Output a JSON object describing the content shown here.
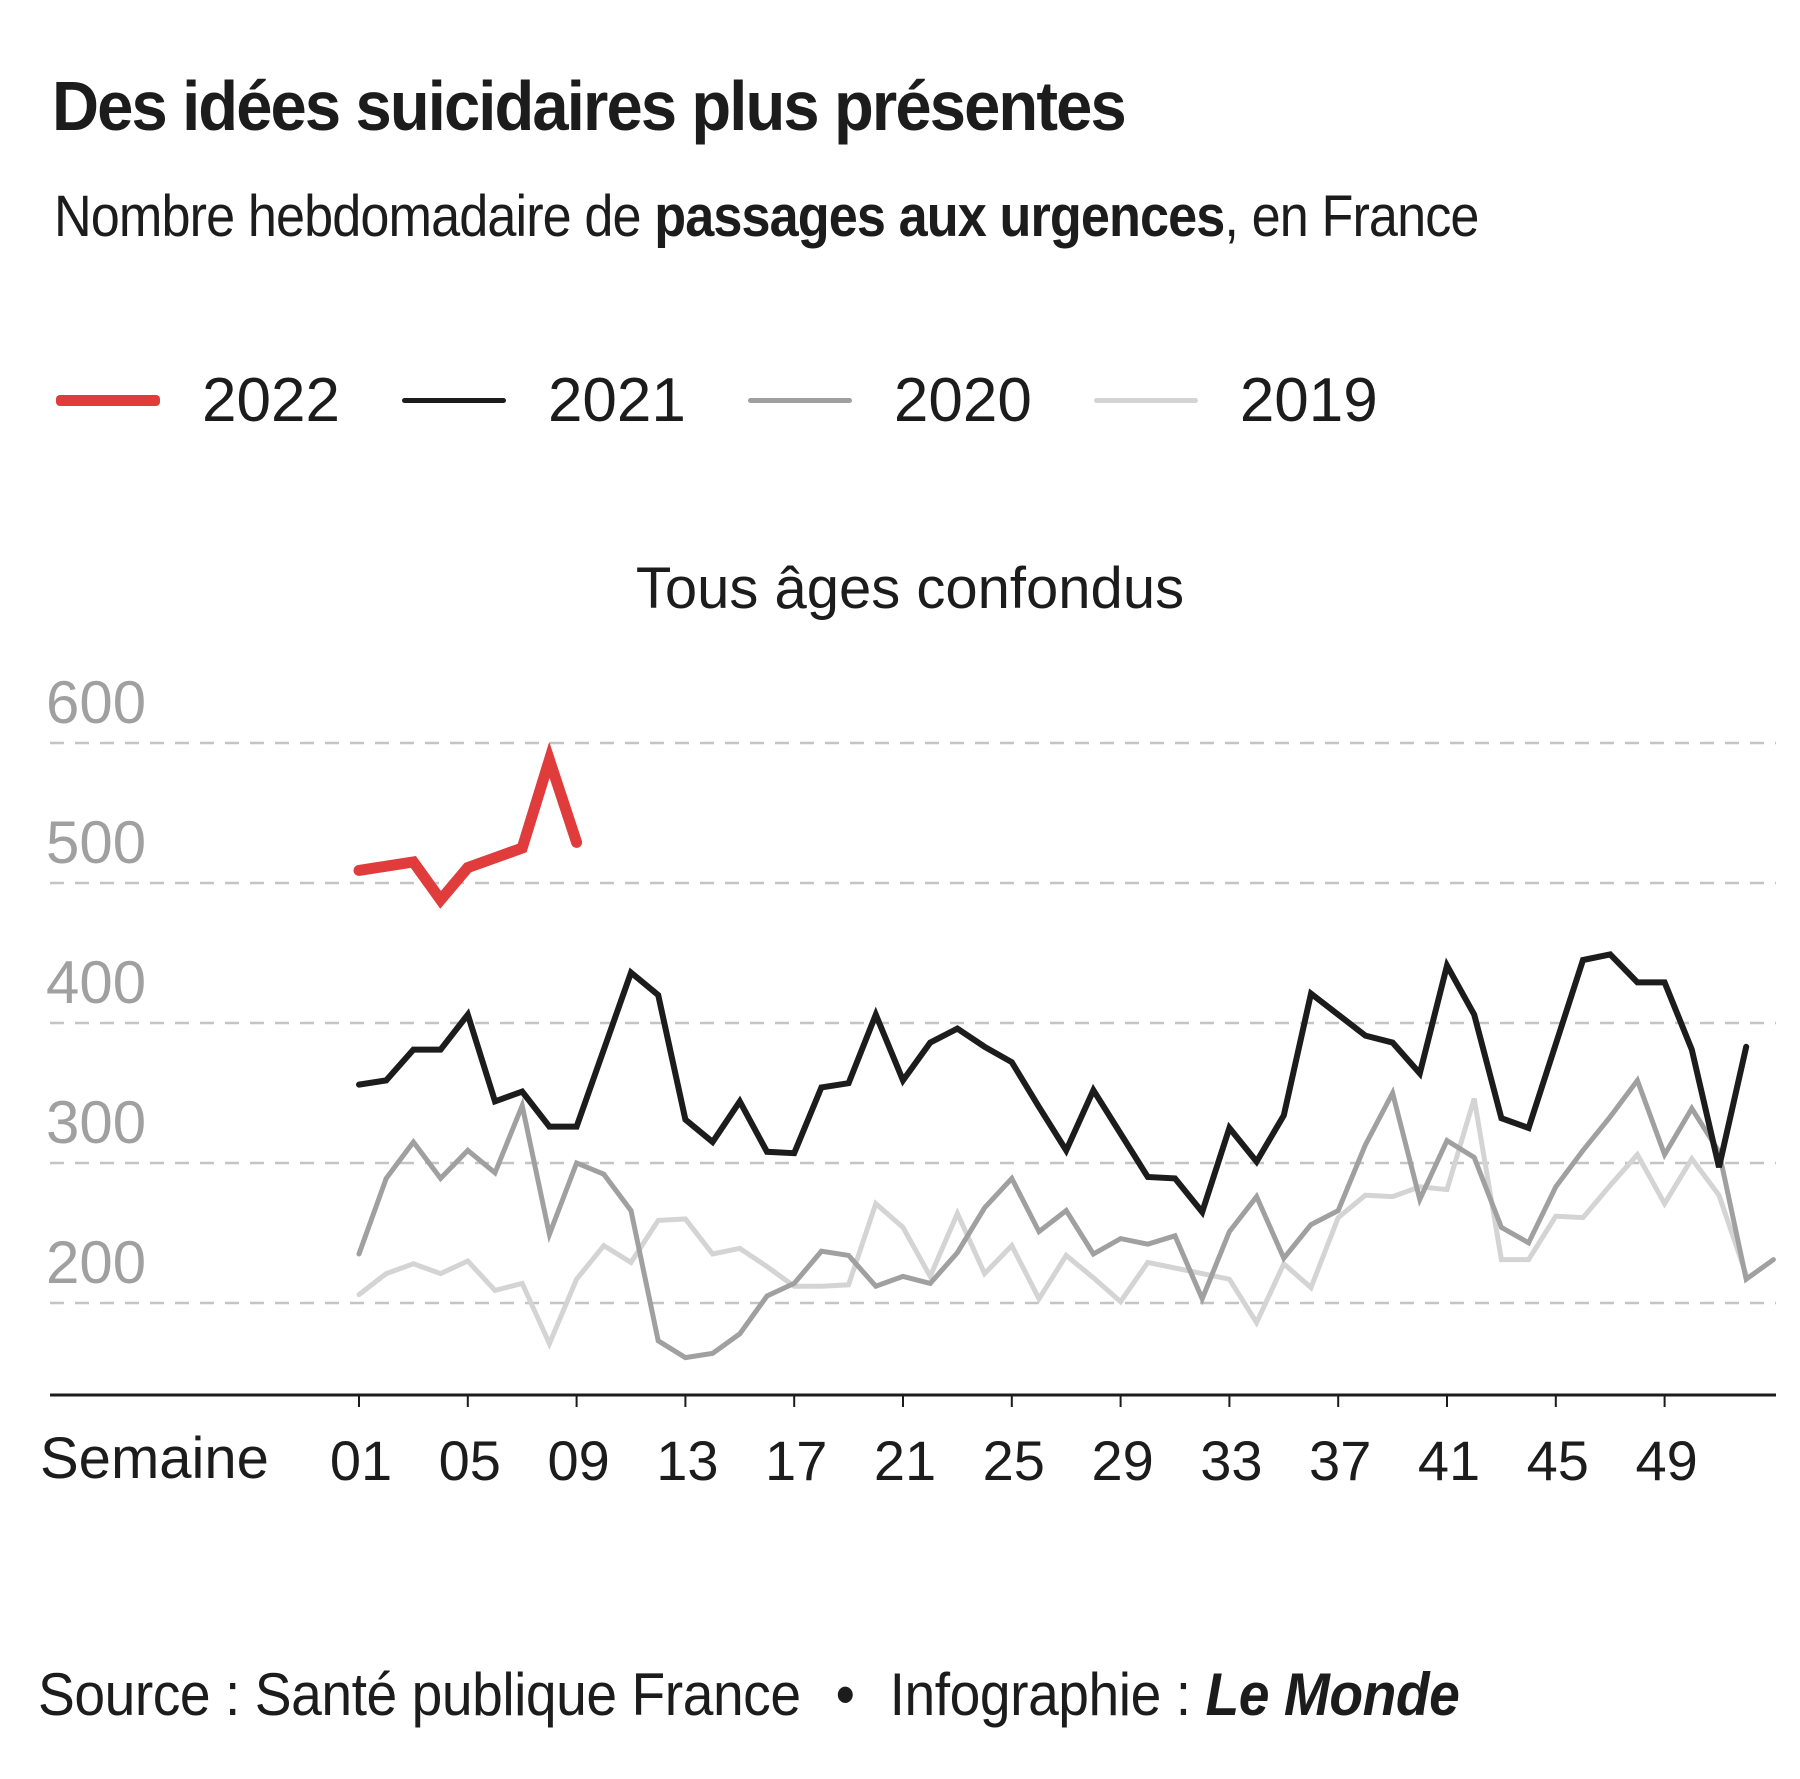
{
  "header": {
    "title": "Des idées suicidaires plus présentes",
    "subtitle_prefix": "Nombre hebdomadaire de ",
    "subtitle_bold": "passages aux urgences",
    "subtitle_suffix": ", en France"
  },
  "legend": [
    {
      "label": "2022",
      "color": "#e03c3c"
    },
    {
      "label": "2021",
      "color": "#1c1c1c"
    },
    {
      "label": "2020",
      "color": "#a0a0a0"
    },
    {
      "label": "2019",
      "color": "#d4d4d4"
    }
  ],
  "footer": {
    "source": "Source : Santé publique France",
    "bullet": "•",
    "credit_prefix": "Infographie : ",
    "credit_brand": "Le Monde"
  },
  "chart_data": {
    "type": "line",
    "title": "Tous âges confondus",
    "xlabel": "Semaine",
    "ylabel": "",
    "ylim": [
      140,
      600
    ],
    "xlim": [
      1,
      53
    ],
    "y_ticks": [
      200,
      300,
      400,
      500,
      600
    ],
    "x_ticks": [
      1,
      5,
      9,
      13,
      17,
      21,
      25,
      29,
      33,
      37,
      41,
      45,
      49
    ],
    "x_tick_labels": [
      "01",
      "05",
      "09",
      "13",
      "17",
      "21",
      "25",
      "29",
      "33",
      "37",
      "41",
      "45",
      "49"
    ],
    "grid": "horizontal-dashed",
    "legend_position": "top-left",
    "series": [
      {
        "name": "2019",
        "color": "#d4d4d4",
        "width": 5,
        "values": [
          206,
          221,
          228,
          221,
          230,
          209,
          214,
          171,
          217,
          241,
          229,
          259,
          260,
          235,
          239,
          226,
          212,
          212,
          213,
          271,
          254,
          219,
          264,
          221,
          241,
          203,
          234,
          218,
          201,
          229,
          225,
          221,
          217,
          186,
          228,
          211,
          261,
          277,
          276,
          283,
          281,
          346,
          231,
          231,
          262,
          261,
          284,
          306,
          271,
          303,
          277,
          220
        ]
      },
      {
        "name": "2020",
        "color": "#a0a0a0",
        "width": 5,
        "values": [
          235,
          289,
          315,
          289,
          309,
          293,
          341,
          249,
          300,
          292,
          266,
          173,
          161,
          164,
          178,
          205,
          214,
          237,
          234,
          212,
          219,
          214,
          236,
          268,
          289,
          251,
          266,
          235,
          246,
          242,
          248,
          203,
          251,
          276,
          232,
          256,
          266,
          313,
          350,
          274,
          316,
          304,
          254,
          243,
          283,
          309,
          333,
          359,
          306,
          339,
          308,
          217,
          231
        ]
      },
      {
        "name": "2021",
        "color": "#1c1c1c",
        "width": 6,
        "values": [
          356,
          359,
          381,
          381,
          406,
          344,
          351,
          326,
          326,
          381,
          436,
          420,
          331,
          315,
          344,
          308,
          307,
          354,
          357,
          406,
          359,
          386,
          396,
          383,
          372,
          340,
          309,
          352,
          321,
          290,
          289,
          265,
          325,
          301,
          334,
          421,
          406,
          391,
          386,
          364,
          441,
          406,
          332,
          325,
          385,
          445,
          449,
          429,
          429,
          381,
          297,
          383
        ]
      },
      {
        "name": "2022",
        "color": "#e03c3c",
        "width": 11,
        "values": [
          509,
          512,
          515,
          488,
          511,
          518,
          525,
          588,
          529
        ]
      }
    ]
  }
}
